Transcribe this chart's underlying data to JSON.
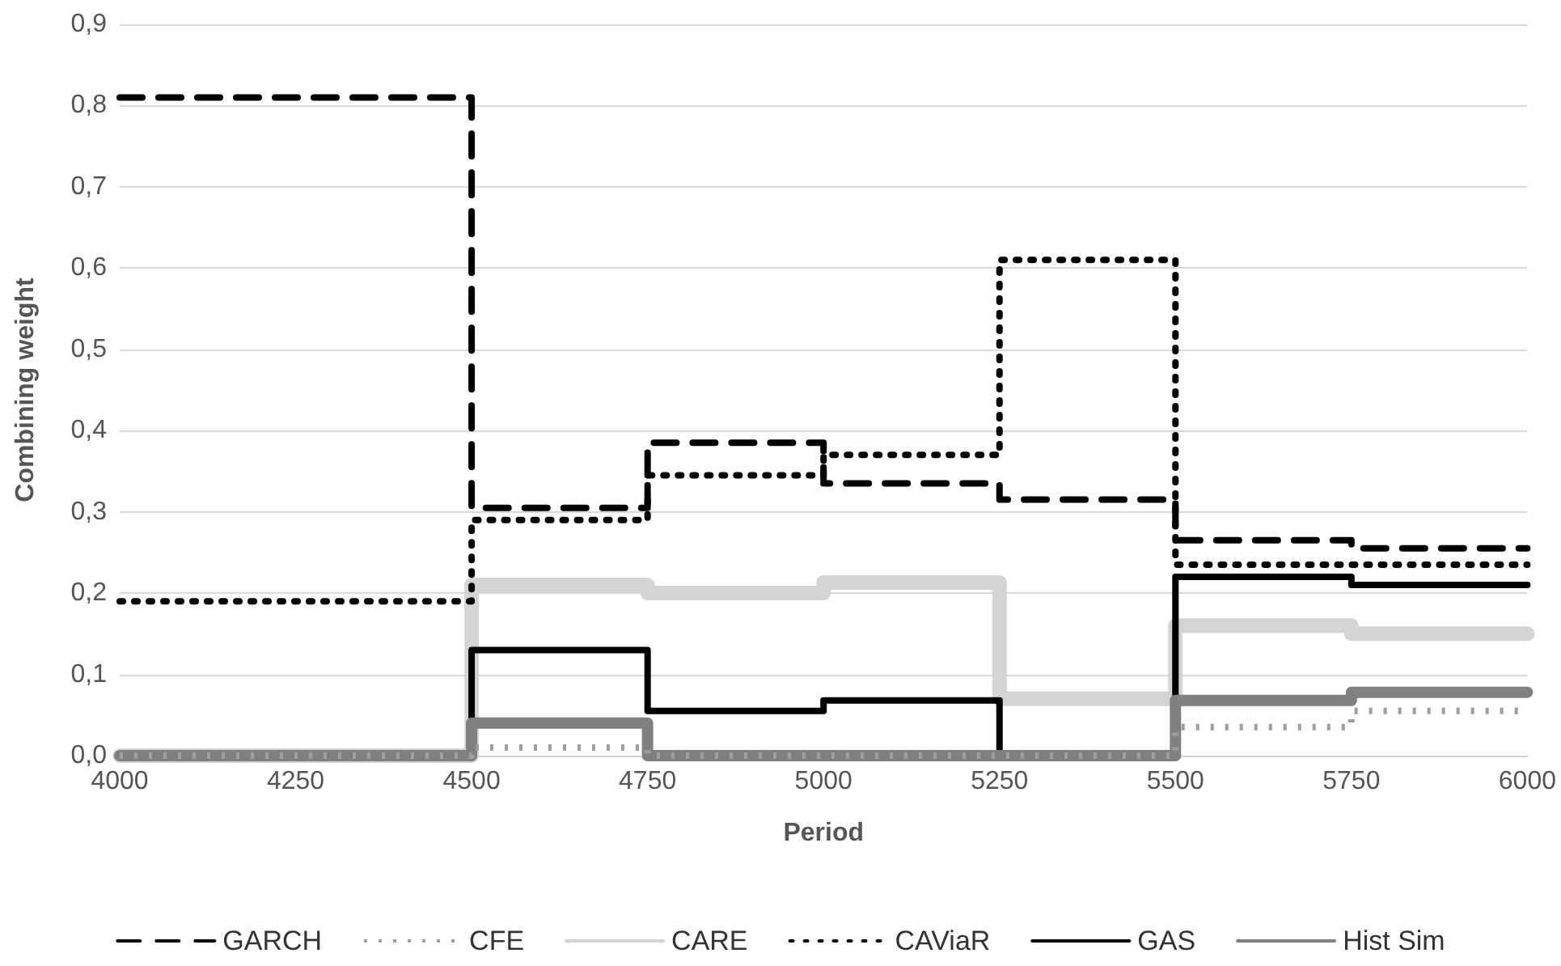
{
  "chart_data": {
    "type": "step",
    "xlabel": "Period",
    "ylabel": "Combining weight",
    "x": [
      4000,
      4500,
      4750,
      5000,
      5250,
      5500,
      5750,
      6000
    ],
    "series": [
      {
        "name": "GARCH",
        "color": "#000000",
        "line_style": "dashed",
        "values": [
          0.81,
          0.305,
          0.385,
          0.335,
          0.315,
          0.265,
          0.255,
          0.255
        ]
      },
      {
        "name": "CFE",
        "color": "#9e9e9e",
        "line_style": "dotted",
        "values": [
          0,
          0.01,
          0,
          0,
          0,
          0.035,
          0.055,
          0.055
        ]
      },
      {
        "name": "CARE",
        "color": "#d4d4d4",
        "line_style": "solid",
        "values": [
          0,
          0.21,
          0.2,
          0.213,
          0.07,
          0.16,
          0.15,
          0.15
        ]
      },
      {
        "name": "CAViaR",
        "color": "#000000",
        "line_style": "dotted",
        "values": [
          0.19,
          0.29,
          0.345,
          0.37,
          0.61,
          0.235,
          0.235,
          0.235
        ]
      },
      {
        "name": "GAS",
        "color": "#000000",
        "line_style": "solid",
        "values": [
          0,
          0.13,
          0.055,
          0.068,
          0,
          0.22,
          0.21,
          0.21
        ]
      },
      {
        "name": "Hist Sim",
        "color": "#808080",
        "line_style": "solid",
        "values": [
          0,
          0.04,
          0,
          0,
          0,
          0.068,
          0.078,
          0.078
        ]
      }
    ],
    "xlim": [
      4000,
      6000
    ],
    "xticks": [
      4000,
      4250,
      4500,
      4750,
      5000,
      5250,
      5500,
      5750,
      6000
    ],
    "ylim": [
      0,
      0.9
    ],
    "yticks": [
      {
        "value": 0,
        "label": "0,0"
      },
      {
        "value": 0.1,
        "label": "0,1"
      },
      {
        "value": 0.2,
        "label": "0,2"
      },
      {
        "value": 0.3,
        "label": "0,3"
      },
      {
        "value": 0.4,
        "label": "0,4"
      },
      {
        "value": 0.5,
        "label": "0,5"
      },
      {
        "value": 0.6,
        "label": "0,6"
      },
      {
        "value": 0.7,
        "label": "0,7"
      },
      {
        "value": 0.8,
        "label": "0,8"
      },
      {
        "value": 0.9,
        "label": "0,9"
      }
    ],
    "grid": "y",
    "legend": "bottom",
    "marker": "none"
  }
}
